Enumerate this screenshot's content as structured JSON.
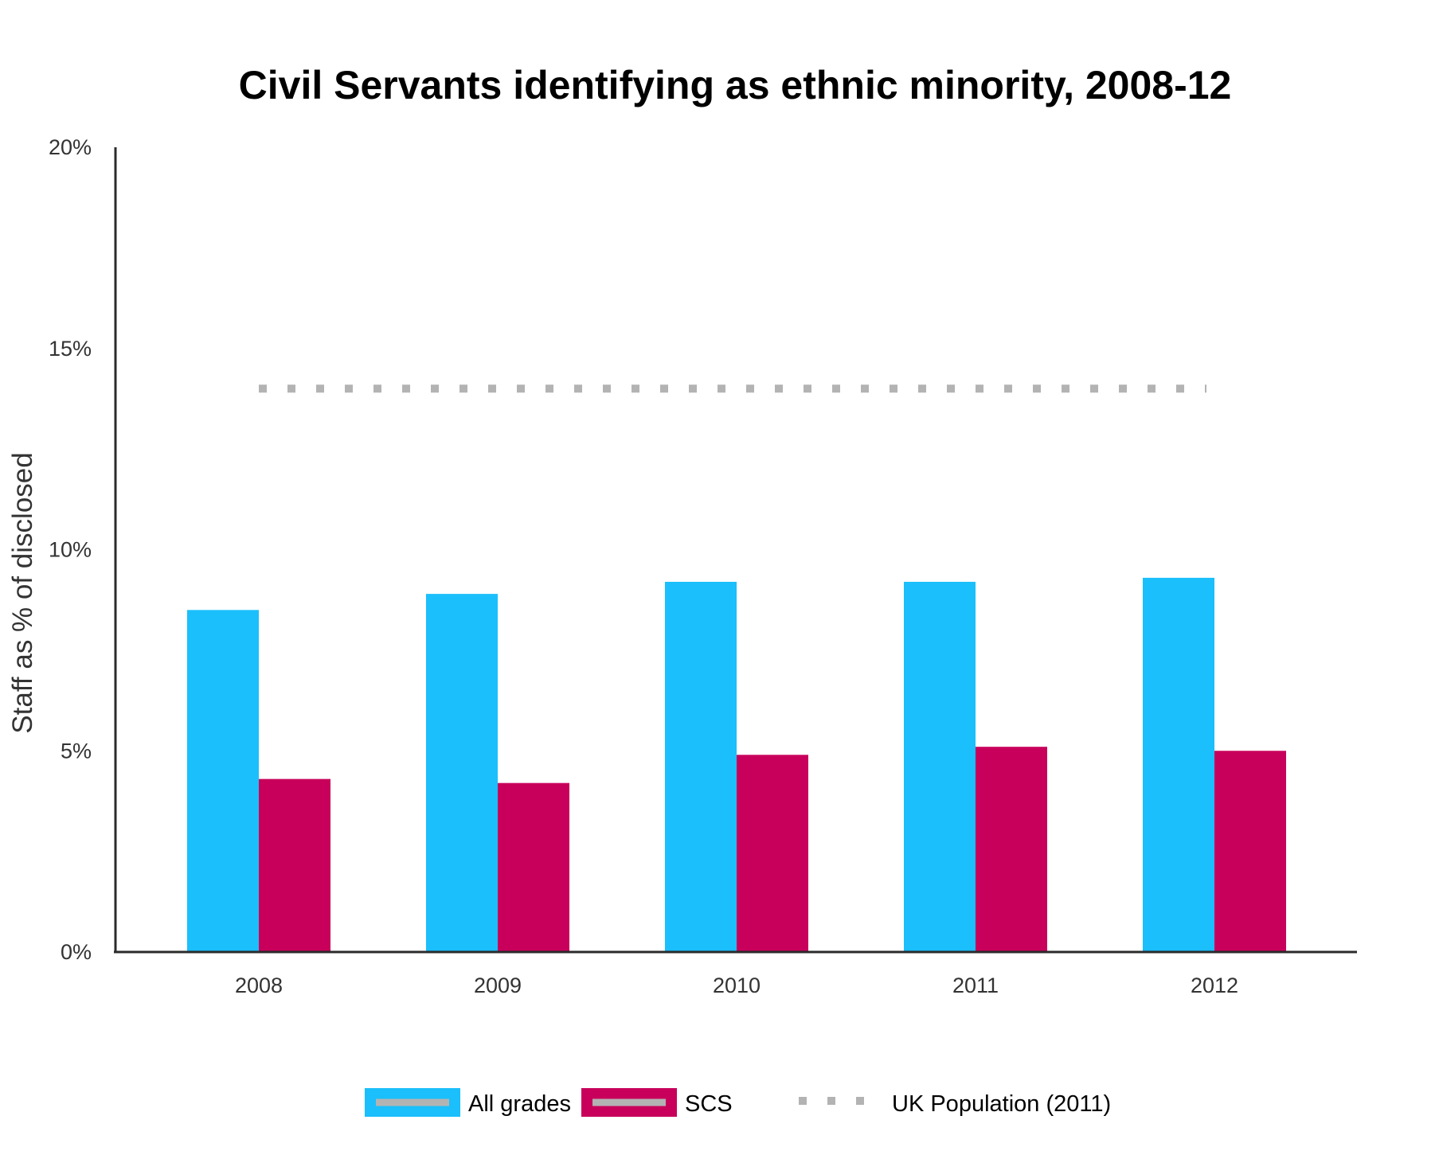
{
  "chart_data": {
    "type": "bar",
    "title": "Civil Servants identifying as ethnic minority, 2008-12",
    "xlabel": "",
    "ylabel": "Staff as % of disclosed",
    "categories": [
      "2008",
      "2009",
      "2010",
      "2011",
      "2012"
    ],
    "y_ticks": [
      "0%",
      "5%",
      "10%",
      "15%",
      "20%"
    ],
    "ylim": [
      0,
      20
    ],
    "grid": false,
    "legend_position": "bottom",
    "series": [
      {
        "name": "All grades",
        "color": "#1ABFFB",
        "values": [
          8.5,
          8.9,
          9.2,
          9.2,
          9.3
        ]
      },
      {
        "name": "SCS",
        "color": "#C8005B",
        "values": [
          4.3,
          4.2,
          4.9,
          5.1,
          5.0
        ]
      }
    ],
    "reference_line": {
      "name": "UK Population (2011)",
      "value": 14,
      "color": "#B3B3B3",
      "style": "dotted"
    }
  }
}
